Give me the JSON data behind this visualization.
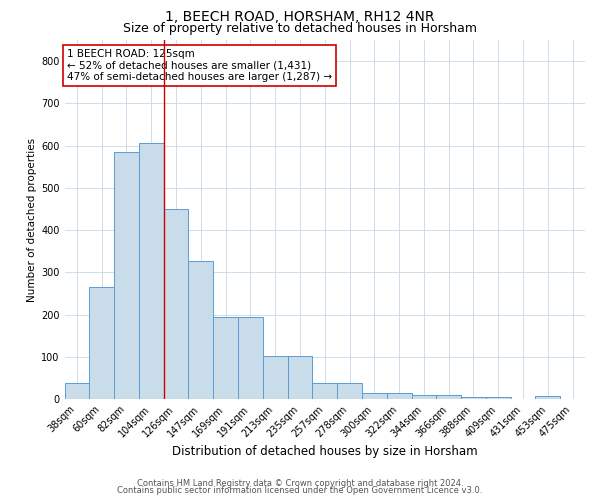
{
  "title": "1, BEECH ROAD, HORSHAM, RH12 4NR",
  "subtitle": "Size of property relative to detached houses in Horsham",
  "xlabel": "Distribution of detached houses by size in Horsham",
  "ylabel": "Number of detached properties",
  "categories": [
    "38sqm",
    "60sqm",
    "82sqm",
    "104sqm",
    "126sqm",
    "147sqm",
    "169sqm",
    "191sqm",
    "213sqm",
    "235sqm",
    "257sqm",
    "278sqm",
    "300sqm",
    "322sqm",
    "344sqm",
    "366sqm",
    "388sqm",
    "409sqm",
    "431sqm",
    "453sqm",
    "475sqm"
  ],
  "values": [
    37,
    265,
    585,
    605,
    450,
    328,
    195,
    195,
    103,
    103,
    37,
    37,
    15,
    15,
    10,
    10,
    5,
    5,
    0,
    7,
    0
  ],
  "bar_color": "#c9dcea",
  "bar_edge_color": "#5b9bd5",
  "red_line_index": 4,
  "annotation_line1": "1 BEECH ROAD: 125sqm",
  "annotation_line2": "← 52% of detached houses are smaller (1,431)",
  "annotation_line3": "47% of semi-detached houses are larger (1,287) →",
  "annotation_box_color": "#ffffff",
  "annotation_box_edge_color": "#cc0000",
  "ylim": [
    0,
    850
  ],
  "yticks": [
    0,
    100,
    200,
    300,
    400,
    500,
    600,
    700,
    800
  ],
  "footer_line1": "Contains HM Land Registry data © Crown copyright and database right 2024.",
  "footer_line2": "Contains public sector information licensed under the Open Government Licence v3.0.",
  "bg_color": "#ffffff",
  "grid_color": "#c8d8e8",
  "title_fontsize": 10,
  "subtitle_fontsize": 9,
  "tick_fontsize": 7,
  "ylabel_fontsize": 7.5,
  "xlabel_fontsize": 8.5,
  "footer_fontsize": 6,
  "annotation_fontsize": 7.5
}
